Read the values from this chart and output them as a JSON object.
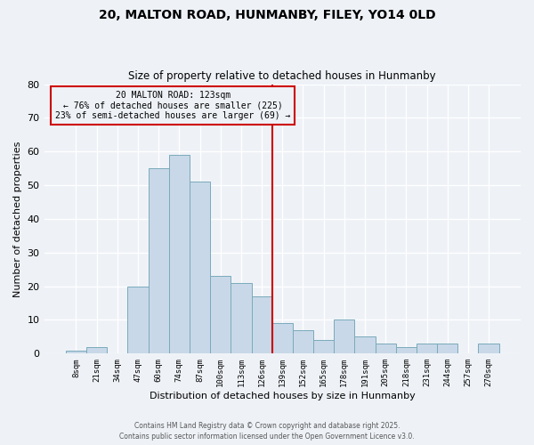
{
  "title1": "20, MALTON ROAD, HUNMANBY, FILEY, YO14 0LD",
  "title2": "Size of property relative to detached houses in Hunmanby",
  "xlabel": "Distribution of detached houses by size in Hunmanby",
  "ylabel": "Number of detached properties",
  "bar_labels": [
    "8sqm",
    "21sqm",
    "34sqm",
    "47sqm",
    "60sqm",
    "74sqm",
    "87sqm",
    "100sqm",
    "113sqm",
    "126sqm",
    "139sqm",
    "152sqm",
    "165sqm",
    "178sqm",
    "191sqm",
    "205sqm",
    "218sqm",
    "231sqm",
    "244sqm",
    "257sqm",
    "270sqm"
  ],
  "bar_values": [
    1,
    2,
    0,
    20,
    55,
    59,
    51,
    23,
    21,
    17,
    9,
    7,
    4,
    10,
    5,
    3,
    2,
    3,
    3,
    0,
    3
  ],
  "bar_color": "#c8d8e8",
  "bar_edgecolor": "#7aaabb",
  "vline_x": 9.5,
  "vline_color": "#cc0000",
  "annotation_title": "20 MALTON ROAD: 123sqm",
  "annotation_line1": "← 76% of detached houses are smaller (225)",
  "annotation_line2": "23% of semi-detached houses are larger (69) →",
  "annotation_box_edgecolor": "#cc0000",
  "ylim": [
    0,
    80
  ],
  "yticks": [
    0,
    10,
    20,
    30,
    40,
    50,
    60,
    70,
    80
  ],
  "footer1": "Contains HM Land Registry data © Crown copyright and database right 2025.",
  "footer2": "Contains public sector information licensed under the Open Government Licence v3.0.",
  "background_color": "#eef2f7"
}
